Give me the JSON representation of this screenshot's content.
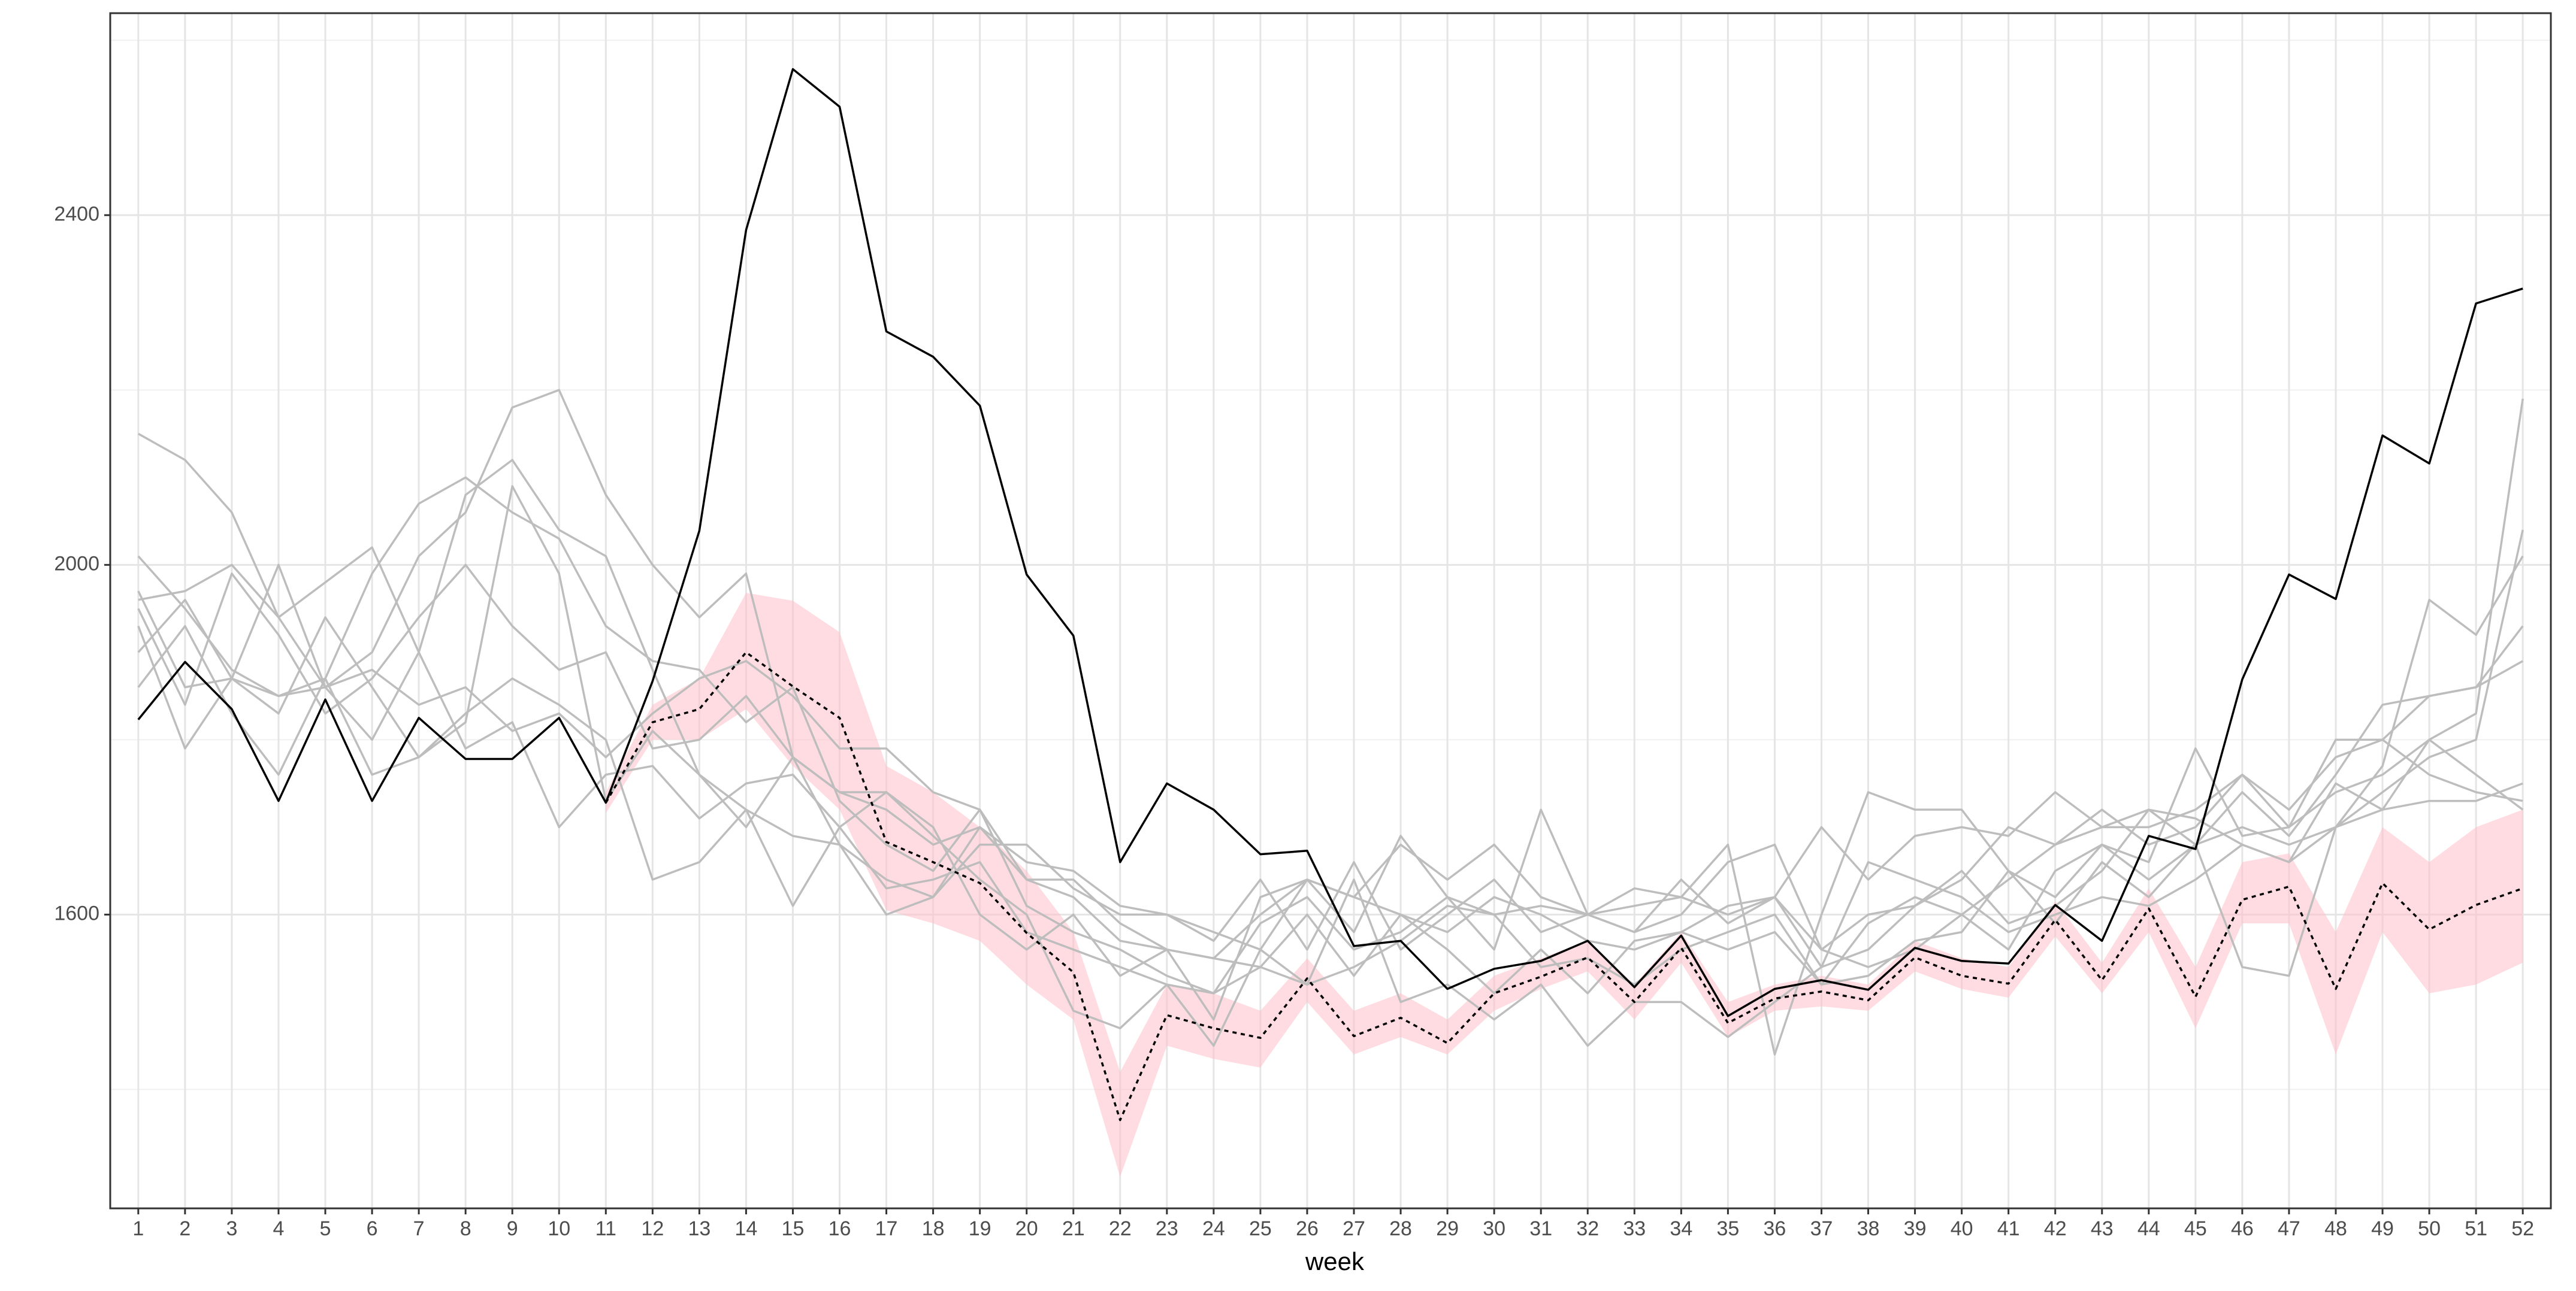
{
  "chart_data": {
    "type": "line",
    "xlabel": "week",
    "x": [
      1,
      2,
      3,
      4,
      5,
      6,
      7,
      8,
      9,
      10,
      11,
      12,
      13,
      14,
      15,
      16,
      17,
      18,
      19,
      20,
      21,
      22,
      23,
      24,
      25,
      26,
      27,
      28,
      29,
      30,
      31,
      32,
      33,
      34,
      35,
      36,
      37,
      38,
      39,
      40,
      41,
      42,
      43,
      44,
      45,
      46,
      47,
      48,
      49,
      50,
      51,
      52
    ],
    "xlim": [
      0.4,
      52.6
    ],
    "xticks": [
      1,
      2,
      3,
      4,
      5,
      6,
      7,
      8,
      9,
      10,
      11,
      12,
      13,
      14,
      15,
      16,
      17,
      18,
      19,
      20,
      21,
      22,
      23,
      24,
      25,
      26,
      27,
      28,
      29,
      30,
      31,
      32,
      33,
      34,
      35,
      36,
      37,
      38,
      39,
      40,
      41,
      42,
      43,
      44,
      45,
      46,
      47,
      48,
      49,
      50,
      51,
      52
    ],
    "ylim": [
      1264,
      2631
    ],
    "yticks": [
      1600,
      2000,
      2400
    ],
    "yminor": [
      1400,
      1800,
      2200,
      2600
    ],
    "grid": true,
    "band": {
      "color": "#ffc0c8",
      "lower": [
        null,
        null,
        null,
        null,
        null,
        null,
        null,
        null,
        null,
        null,
        1716,
        1800,
        1800,
        1835,
        1770,
        1720,
        1605,
        1590,
        1570,
        1520,
        1480,
        1300,
        1450,
        1435,
        1425,
        1500,
        1440,
        1460,
        1440,
        1490,
        1515,
        1535,
        1480,
        1545,
        1460,
        1490,
        1495,
        1490,
        1535,
        1515,
        1505,
        1575,
        1510,
        1580,
        1470,
        1590,
        1590,
        1440,
        1580,
        1510,
        1520,
        1545
      ],
      "upper": [
        null,
        null,
        null,
        null,
        null,
        null,
        null,
        null,
        null,
        null,
        1740,
        1840,
        1870,
        1968,
        1959,
        1923,
        1770,
        1740,
        1700,
        1650,
        1580,
        1420,
        1520,
        1510,
        1490,
        1550,
        1490,
        1510,
        1480,
        1530,
        1550,
        1570,
        1520,
        1580,
        1500,
        1520,
        1530,
        1520,
        1570,
        1550,
        1540,
        1615,
        1545,
        1630,
        1540,
        1660,
        1670,
        1580,
        1700,
        1660,
        1700,
        1720
      ]
    },
    "series": [
      {
        "color": "#bdbdbd",
        "dash": "solid",
        "values": [
          2150,
          2120,
          2060,
          1940,
          1980,
          2020,
          1900,
          2080,
          2120,
          2040,
          2010,
          1880,
          1760,
          1720,
          1690,
          1680,
          1640,
          1620,
          1700,
          1640,
          1640,
          1590,
          1560,
          1550,
          1600,
          1640,
          1620,
          1600,
          1580,
          1620,
          1600,
          1570,
          1560,
          1580,
          1610,
          1620,
          1560,
          1540,
          1560,
          1600,
          1640,
          1680,
          1700,
          1700,
          1720,
          1760,
          1700,
          1740,
          1760,
          1800,
          1830,
          2190
        ]
      },
      {
        "color": "#bdbdbd",
        "dash": "solid",
        "values": [
          1960,
          1970,
          2000,
          1940,
          1860,
          1900,
          2010,
          2060,
          2180,
          2200,
          2080,
          2000,
          1940,
          1990,
          1780,
          1740,
          1720,
          1680,
          1700,
          1660,
          1650,
          1610,
          1600,
          1580,
          1560,
          1640,
          1620,
          1680,
          1640,
          1680,
          1620,
          1600,
          1580,
          1600,
          1660,
          1680,
          1560,
          1600,
          1610,
          1640,
          1700,
          1680,
          1720,
          1680,
          1700,
          1760,
          1720,
          1780,
          1800,
          1850,
          1860,
          1930
        ]
      },
      {
        "color": "#bdbdbd",
        "dash": "solid",
        "values": [
          2010,
          1950,
          1880,
          1850,
          1870,
          1990,
          2070,
          2100,
          2060,
          2030,
          1930,
          1890,
          1880,
          1820,
          1860,
          1730,
          1680,
          1650,
          1720,
          1610,
          1580,
          1560,
          1530,
          1510,
          1590,
          1620,
          1560,
          1580,
          1620,
          1600,
          1540,
          1550,
          1520,
          1560,
          1580,
          1600,
          1520,
          1590,
          1620,
          1600,
          1560,
          1650,
          1680,
          1640,
          1680,
          1700,
          1680,
          1700,
          1740,
          1780,
          1800,
          2040
        ]
      },
      {
        "color": "#bdbdbd",
        "dash": "solid",
        "values": [
          1900,
          1960,
          1870,
          1830,
          1940,
          1860,
          1780,
          1830,
          1870,
          1840,
          1800,
          1640,
          1660,
          1720,
          1610,
          1700,
          1740,
          1700,
          1600,
          1560,
          1600,
          1530,
          1560,
          1480,
          1620,
          1640,
          1580,
          1690,
          1620,
          1560,
          1720,
          1600,
          1630,
          1620,
          1680,
          1440,
          1600,
          1740,
          1720,
          1720,
          1650,
          1620,
          1680,
          1660,
          1790,
          1690,
          1700,
          1800,
          1800,
          1760,
          1740,
          1730
        ]
      },
      {
        "color": "#bdbdbd",
        "dash": "solid",
        "values": [
          1860,
          1930,
          1830,
          1760,
          1870,
          1760,
          1780,
          1820,
          2090,
          1990,
          1730,
          1810,
          1760,
          1700,
          1780,
          1680,
          1600,
          1620,
          1680,
          1680,
          1630,
          1600,
          1600,
          1570,
          1640,
          1560,
          1660,
          1560,
          1600,
          1640,
          1580,
          1600,
          1580,
          1640,
          1590,
          1620,
          1700,
          1640,
          1690,
          1700,
          1690,
          1740,
          1700,
          1720,
          1680,
          1740,
          1690,
          1760,
          1840,
          1850,
          1860,
          1890
        ]
      },
      {
        "color": "#bdbdbd",
        "dash": "solid",
        "values": [
          1930,
          1790,
          1870,
          1850,
          1860,
          1800,
          1900,
          1790,
          1820,
          1700,
          1760,
          1770,
          1710,
          1750,
          1760,
          1700,
          1630,
          1640,
          1660,
          1580,
          1560,
          1540,
          1520,
          1450,
          1560,
          1520,
          1640,
          1500,
          1520,
          1480,
          1520,
          1450,
          1500,
          1500,
          1460,
          1500,
          1540,
          1660,
          1640,
          1620,
          1580,
          1600,
          1620,
          1610,
          1640,
          1680,
          1660,
          1700,
          1720,
          1800,
          1760,
          1720
        ]
      },
      {
        "color": "#bdbdbd",
        "dash": "solid",
        "values": [
          1950,
          1840,
          1990,
          1920,
          1830,
          1870,
          1940,
          2000,
          1930,
          1880,
          1900,
          1790,
          1800,
          1850,
          1780,
          1740,
          1740,
          1690,
          1640,
          1600,
          1490,
          1470,
          1520,
          1510,
          1540,
          1600,
          1530,
          1600,
          1560,
          1510,
          1560,
          1510,
          1570,
          1580,
          1560,
          1580,
          1520,
          1530,
          1570,
          1580,
          1650,
          1590,
          1660,
          1620,
          1680,
          1540,
          1530,
          1700,
          1770,
          1960,
          1920,
          2010
        ]
      },
      {
        "color": "#bdbdbd",
        "dash": "solid",
        "values": [
          1970,
          1860,
          1870,
          2000,
          1860,
          1880,
          1840,
          1860,
          1810,
          1830,
          1780,
          1830,
          1870,
          1890,
          1850,
          1790,
          1790,
          1740,
          1720,
          1640,
          1620,
          1570,
          1560,
          1550,
          1540,
          1520,
          1540,
          1570,
          1610,
          1600,
          1610,
          1600,
          1610,
          1620,
          1600,
          1620,
          1540,
          1560,
          1610,
          1650,
          1590,
          1610,
          1650,
          1720,
          1710,
          1680,
          1660,
          1750,
          1720,
          1730,
          1730,
          1750
        ]
      },
      {
        "color": "#000000",
        "dash": "dotted",
        "values": [
          null,
          null,
          null,
          null,
          null,
          null,
          null,
          null,
          null,
          null,
          1728,
          1820,
          1835,
          1900,
          1861,
          1825,
          1683,
          1660,
          1636,
          1579,
          1534,
          1365,
          1485,
          1470,
          1459,
          1527,
          1461,
          1482,
          1453,
          1510,
          1529,
          1551,
          1500,
          1562,
          1476,
          1504,
          1512,
          1502,
          1551,
          1530,
          1521,
          1594,
          1525,
          1607,
          1506,
          1617,
          1632,
          1515,
          1636,
          1583,
          1611,
          1630
        ]
      },
      {
        "color": "#000000",
        "dash": "solid",
        "values": [
          1823,
          1889,
          1835,
          1730,
          1846,
          1730,
          1825,
          1778,
          1778,
          1825,
          1728,
          1867,
          2039,
          2383,
          2567,
          2524,
          2267,
          2238,
          2182,
          1989,
          1919,
          1660,
          1750,
          1720,
          1669,
          1673,
          1564,
          1570,
          1515,
          1538,
          1547,
          1570,
          1517,
          1576,
          1484,
          1515,
          1525,
          1514,
          1562,
          1547,
          1544,
          1611,
          1570,
          1690,
          1675,
          1869,
          1989,
          1961,
          2148,
          2116,
          2299,
          2316
        ]
      }
    ]
  }
}
